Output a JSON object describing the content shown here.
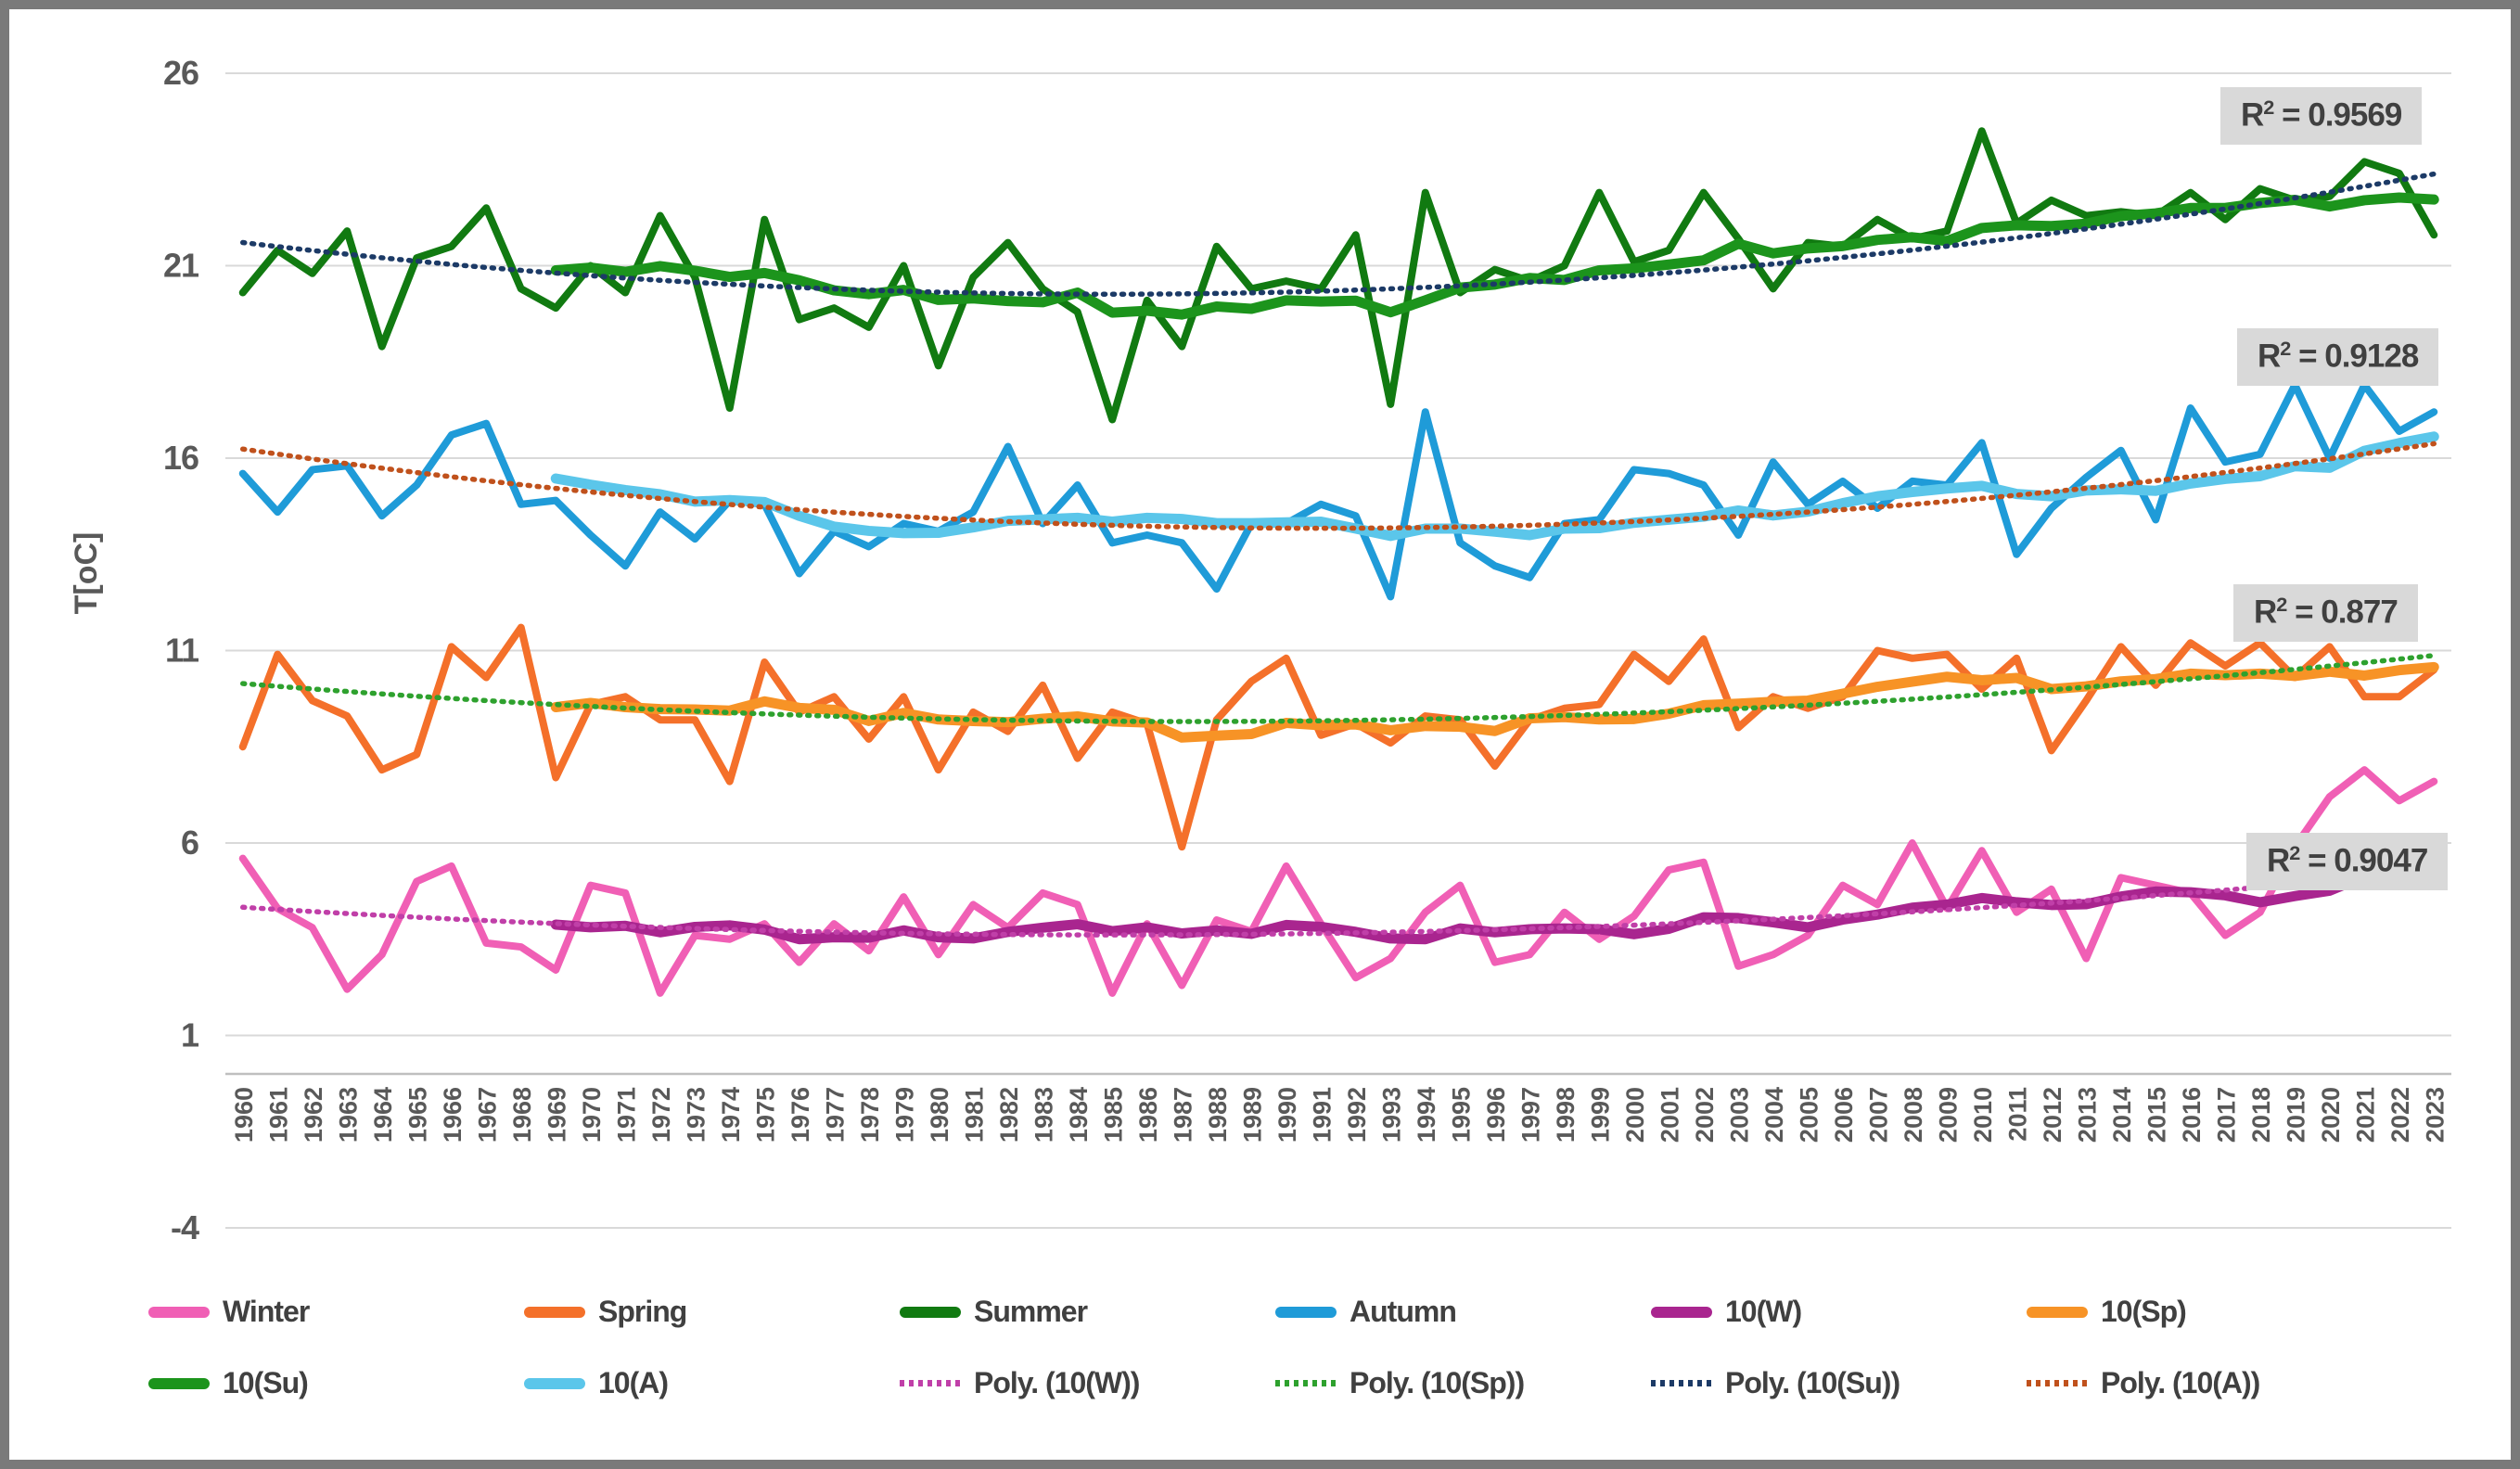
{
  "chart_data": {
    "type": "line",
    "title": "",
    "xlabel": "",
    "ylabel": "T[oC]",
    "ylim": [
      -4,
      26
    ],
    "yticks": [
      26,
      21,
      16,
      11,
      6,
      1,
      -4
    ],
    "x_axis_cross": 0,
    "grid": true,
    "legend_position": "bottom",
    "x": [
      1960,
      1961,
      1962,
      1963,
      1964,
      1965,
      1966,
      1967,
      1968,
      1969,
      1970,
      1971,
      1972,
      1973,
      1974,
      1975,
      1976,
      1977,
      1978,
      1979,
      1980,
      1981,
      1982,
      1983,
      1984,
      1985,
      1986,
      1987,
      1988,
      1989,
      1990,
      1991,
      1992,
      1993,
      1994,
      1995,
      1996,
      1997,
      1998,
      1999,
      2000,
      2001,
      2002,
      2003,
      2004,
      2005,
      2006,
      2007,
      2008,
      2009,
      2010,
      2011,
      2012,
      2013,
      2014,
      2015,
      2016,
      2017,
      2018,
      2019,
      2020,
      2021,
      2022,
      2023
    ],
    "series": [
      {
        "name": "Winter",
        "color": "#F05FB5",
        "values": [
          5.6,
          4.3,
          3.8,
          2.2,
          3.1,
          5.0,
          5.4,
          3.4,
          3.3,
          2.7,
          4.9,
          4.7,
          2.1,
          3.6,
          3.5,
          3.9,
          2.9,
          3.9,
          3.2,
          4.6,
          3.1,
          4.4,
          3.8,
          4.7,
          4.4,
          2.1,
          3.9,
          2.3,
          4.0,
          3.7,
          5.4,
          3.9,
          2.5,
          3.0,
          4.2,
          4.9,
          2.9,
          3.1,
          4.2,
          3.5,
          4.1,
          5.3,
          5.5,
          2.8,
          3.1,
          3.6,
          4.9,
          4.4,
          6.0,
          4.3,
          5.8,
          4.2,
          4.8,
          3.0,
          5.1,
          4.9,
          4.7,
          3.6,
          4.2,
          5.9,
          7.2,
          7.9,
          7.1,
          7.6
        ]
      },
      {
        "name": "Spring",
        "color": "#F4702A",
        "values": [
          8.5,
          10.9,
          9.7,
          9.3,
          7.9,
          8.3,
          11.1,
          10.3,
          11.6,
          7.7,
          9.6,
          9.8,
          9.2,
          9.2,
          7.6,
          10.7,
          9.4,
          9.8,
          8.7,
          9.8,
          7.9,
          9.4,
          8.9,
          10.1,
          8.2,
          9.4,
          9.1,
          5.9,
          9.2,
          10.2,
          10.8,
          8.8,
          9.1,
          8.6,
          9.3,
          9.2,
          8.0,
          9.2,
          9.5,
          9.6,
          10.9,
          10.2,
          11.3,
          9.0,
          9.8,
          9.5,
          9.8,
          11.0,
          10.8,
          10.9,
          10.0,
          10.8,
          8.4,
          9.7,
          11.1,
          10.1,
          11.2,
          10.6,
          11.2,
          10.3,
          11.1,
          9.8,
          9.8,
          10.5
        ]
      },
      {
        "name": "Summer",
        "color": "#117A11",
        "values": [
          20.3,
          21.4,
          20.8,
          21.9,
          18.9,
          21.2,
          21.5,
          22.5,
          20.4,
          19.9,
          21.0,
          20.3,
          22.3,
          20.7,
          17.3,
          22.2,
          19.6,
          19.9,
          19.4,
          21.0,
          18.4,
          20.7,
          21.6,
          20.4,
          19.8,
          17.0,
          20.1,
          18.9,
          21.5,
          20.4,
          20.6,
          20.4,
          21.8,
          17.4,
          22.9,
          20.3,
          20.9,
          20.6,
          21.0,
          22.9,
          21.1,
          21.4,
          22.9,
          21.7,
          20.4,
          21.6,
          21.5,
          22.2,
          21.7,
          21.9,
          24.5,
          22.1,
          22.7,
          22.3,
          22.4,
          22.3,
          22.9,
          22.2,
          23.0,
          22.7,
          22.8,
          23.7,
          23.4,
          21.8
        ]
      },
      {
        "name": "Autumn",
        "color": "#1F9BD8",
        "values": [
          15.6,
          14.6,
          15.7,
          15.8,
          14.5,
          15.3,
          16.6,
          16.9,
          14.8,
          14.9,
          14.0,
          13.2,
          14.6,
          13.9,
          14.9,
          14.8,
          13.0,
          14.1,
          13.7,
          14.3,
          14.1,
          14.6,
          16.3,
          14.3,
          15.3,
          13.8,
          14.0,
          13.8,
          12.6,
          14.3,
          14.3,
          14.8,
          14.5,
          12.4,
          17.2,
          13.8,
          13.2,
          12.9,
          14.3,
          14.4,
          15.7,
          15.6,
          15.3,
          14.0,
          15.9,
          14.8,
          15.4,
          14.7,
          15.4,
          15.3,
          16.4,
          13.5,
          14.7,
          15.5,
          16.2,
          14.4,
          17.3,
          15.9,
          16.1,
          17.9,
          16.0,
          17.9,
          16.7,
          17.2
        ]
      }
    ],
    "moving_averages": [
      {
        "name": "10(W)",
        "source": "Winter",
        "window": 10,
        "color": "#A9258F"
      },
      {
        "name": "10(Sp)",
        "source": "Spring",
        "window": 10,
        "color": "#F79326"
      },
      {
        "name": "10(Su)",
        "source": "Summer",
        "window": 10,
        "color": "#1C941C"
      },
      {
        "name": "10(A)",
        "source": "Autumn",
        "window": 10,
        "color": "#5BC6EA"
      }
    ],
    "trendlines": [
      {
        "name": "Poly. (10(W))",
        "source": "10(W)",
        "order": 2,
        "color": "#C03FA8",
        "r2": "0.9047"
      },
      {
        "name": "Poly. (10(Sp))",
        "source": "10(Sp)",
        "order": 2,
        "color": "#2EA12E",
        "r2": "0.877"
      },
      {
        "name": "Poly. (10(Su))",
        "source": "10(Su)",
        "order": 2,
        "color": "#1C3A66",
        "r2": "0.9569"
      },
      {
        "name": "Poly. (10(A))",
        "source": "10(A)",
        "order": 2,
        "color": "#C0511C",
        "r2": "0.9128"
      }
    ],
    "r2_prefix": "R",
    "r2_sup": "2",
    "r2_eq": " = ",
    "r2_boxes": [
      {
        "id": "su",
        "value": "0.9569"
      },
      {
        "id": "a",
        "value": "0.9128"
      },
      {
        "id": "sp",
        "value": "0.877"
      },
      {
        "id": "w",
        "value": "0.9047"
      }
    ]
  },
  "legend": {
    "items": [
      {
        "label": "Winter",
        "color": "#F05FB5",
        "style": "solid"
      },
      {
        "label": "Spring",
        "color": "#F4702A",
        "style": "solid"
      },
      {
        "label": "Summer",
        "color": "#117A11",
        "style": "solid"
      },
      {
        "label": "Autumn",
        "color": "#1F9BD8",
        "style": "solid"
      },
      {
        "label": "10(W)",
        "color": "#A9258F",
        "style": "solid"
      },
      {
        "label": "10(Sp)",
        "color": "#F79326",
        "style": "solid"
      },
      {
        "label": "10(Su)",
        "color": "#1C941C",
        "style": "solid"
      },
      {
        "label": "10(A)",
        "color": "#5BC6EA",
        "style": "solid"
      },
      {
        "label": "Poly. (10(W))",
        "color": "#C03FA8",
        "style": "dotted"
      },
      {
        "label": "Poly. (10(Sp))",
        "color": "#2EA12E",
        "style": "dotted"
      },
      {
        "label": "Poly. (10(Su))",
        "color": "#1C3A66",
        "style": "dotted"
      },
      {
        "label": "Poly. (10(A))",
        "color": "#C0511C",
        "style": "dotted"
      }
    ]
  },
  "axis_style": {
    "grid_color": "#D9D9D9",
    "axis_line_color": "#BFBFBF",
    "tick_text_color": "#595959"
  }
}
